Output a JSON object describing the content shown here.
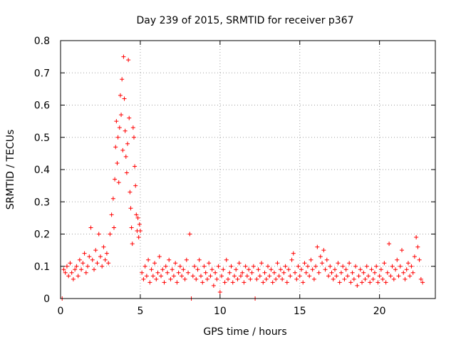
{
  "chart_data": {
    "type": "scatter",
    "title": "Day 239 of 2015, SRMTID for receiver p367",
    "xlabel": "GPS time / hours",
    "ylabel": "SRMTID / TECUs",
    "xlim": [
      0,
      23.5
    ],
    "ylim": [
      0,
      0.8
    ],
    "xticks": [
      0,
      5,
      10,
      15,
      20
    ],
    "xtick_labels": [
      "0",
      "5",
      "10",
      "15",
      "20"
    ],
    "yticks": [
      0,
      0.1,
      0.2,
      0.3,
      0.4,
      0.5,
      0.6,
      0.7,
      0.8
    ],
    "ytick_labels": [
      "0",
      "0.1",
      "0.2",
      "0.3",
      "0.4",
      "0.5",
      "0.6",
      "0.7",
      "0.8"
    ],
    "grid": true,
    "marker": "plus",
    "color": "#ff0000",
    "series": [
      {
        "name": "SRMTID",
        "points": [
          [
            0.1,
            0.0
          ],
          [
            0.2,
            0.09
          ],
          [
            0.3,
            0.08
          ],
          [
            0.4,
            0.1
          ],
          [
            0.5,
            0.07
          ],
          [
            0.6,
            0.11
          ],
          [
            0.7,
            0.08
          ],
          [
            0.8,
            0.06
          ],
          [
            0.9,
            0.09
          ],
          [
            1.0,
            0.1
          ],
          [
            1.1,
            0.07
          ],
          [
            1.2,
            0.12
          ],
          [
            1.3,
            0.09
          ],
          [
            1.4,
            0.11
          ],
          [
            1.5,
            0.14
          ],
          [
            1.6,
            0.08
          ],
          [
            1.7,
            0.1
          ],
          [
            1.8,
            0.13
          ],
          [
            1.9,
            0.22
          ],
          [
            2.0,
            0.12
          ],
          [
            2.1,
            0.09
          ],
          [
            2.2,
            0.15
          ],
          [
            2.3,
            0.11
          ],
          [
            2.4,
            0.2
          ],
          [
            2.5,
            0.13
          ],
          [
            2.6,
            0.1
          ],
          [
            2.7,
            0.16
          ],
          [
            2.8,
            0.12
          ],
          [
            2.9,
            0.14
          ],
          [
            3.0,
            0.11
          ],
          [
            3.1,
            0.2
          ],
          [
            3.2,
            0.26
          ],
          [
            3.3,
            0.31
          ],
          [
            3.35,
            0.22
          ],
          [
            3.4,
            0.37
          ],
          [
            3.45,
            0.47
          ],
          [
            3.5,
            0.55
          ],
          [
            3.55,
            0.42
          ],
          [
            3.6,
            0.5
          ],
          [
            3.65,
            0.36
          ],
          [
            3.7,
            0.53
          ],
          [
            3.75,
            0.63
          ],
          [
            3.8,
            0.57
          ],
          [
            3.85,
            0.68
          ],
          [
            3.9,
            0.46
          ],
          [
            3.95,
            0.75
          ],
          [
            4.0,
            0.62
          ],
          [
            4.05,
            0.52
          ],
          [
            4.1,
            0.44
          ],
          [
            4.15,
            0.39
          ],
          [
            4.2,
            0.48
          ],
          [
            4.25,
            0.74
          ],
          [
            4.3,
            0.56
          ],
          [
            4.35,
            0.33
          ],
          [
            4.4,
            0.28
          ],
          [
            4.45,
            0.22
          ],
          [
            4.5,
            0.17
          ],
          [
            4.55,
            0.53
          ],
          [
            4.6,
            0.5
          ],
          [
            4.65,
            0.41
          ],
          [
            4.7,
            0.35
          ],
          [
            4.75,
            0.26
          ],
          [
            4.8,
            0.21
          ],
          [
            4.85,
            0.25
          ],
          [
            4.9,
            0.19
          ],
          [
            4.95,
            0.23
          ],
          [
            5.0,
            0.21
          ],
          [
            5.1,
            0.08
          ],
          [
            5.2,
            0.06
          ],
          [
            5.3,
            0.1
          ],
          [
            5.4,
            0.07
          ],
          [
            5.5,
            0.12
          ],
          [
            5.6,
            0.05
          ],
          [
            5.7,
            0.09
          ],
          [
            5.8,
            0.07
          ],
          [
            5.9,
            0.11
          ],
          [
            6.0,
            0.06
          ],
          [
            6.1,
            0.08
          ],
          [
            6.2,
            0.13
          ],
          [
            6.3,
            0.07
          ],
          [
            6.4,
            0.09
          ],
          [
            6.5,
            0.05
          ],
          [
            6.6,
            0.1
          ],
          [
            6.7,
            0.08
          ],
          [
            6.8,
            0.12
          ],
          [
            6.9,
            0.06
          ],
          [
            7.0,
            0.09
          ],
          [
            7.1,
            0.07
          ],
          [
            7.2,
            0.11
          ],
          [
            7.3,
            0.05
          ],
          [
            7.4,
            0.08
          ],
          [
            7.5,
            0.1
          ],
          [
            7.6,
            0.07
          ],
          [
            7.7,
            0.09
          ],
          [
            7.8,
            0.06
          ],
          [
            7.9,
            0.12
          ],
          [
            8.0,
            0.08
          ],
          [
            8.1,
            0.2
          ],
          [
            8.2,
            0.0
          ],
          [
            8.3,
            0.07
          ],
          [
            8.4,
            0.1
          ],
          [
            8.5,
            0.06
          ],
          [
            8.6,
            0.09
          ],
          [
            8.7,
            0.12
          ],
          [
            8.8,
            0.07
          ],
          [
            8.9,
            0.05
          ],
          [
            9.0,
            0.1
          ],
          [
            9.1,
            0.08
          ],
          [
            9.2,
            0.06
          ],
          [
            9.3,
            0.11
          ],
          [
            9.4,
            0.07
          ],
          [
            9.5,
            0.09
          ],
          [
            9.6,
            0.04
          ],
          [
            9.7,
            0.08
          ],
          [
            9.8,
            0.06
          ],
          [
            9.9,
            0.1
          ],
          [
            10.0,
            0.02
          ],
          [
            10.1,
            0.07
          ],
          [
            10.2,
            0.09
          ],
          [
            10.3,
            0.05
          ],
          [
            10.4,
            0.12
          ],
          [
            10.5,
            0.06
          ],
          [
            10.6,
            0.08
          ],
          [
            10.7,
            0.1
          ],
          [
            10.8,
            0.05
          ],
          [
            10.9,
            0.07
          ],
          [
            11.0,
            0.09
          ],
          [
            11.1,
            0.06
          ],
          [
            11.2,
            0.11
          ],
          [
            11.3,
            0.07
          ],
          [
            11.4,
            0.08
          ],
          [
            11.5,
            0.05
          ],
          [
            11.6,
            0.1
          ],
          [
            11.7,
            0.07
          ],
          [
            11.8,
            0.09
          ],
          [
            11.9,
            0.06
          ],
          [
            12.0,
            0.08
          ],
          [
            12.1,
            0.1
          ],
          [
            12.2,
            0.0
          ],
          [
            12.3,
            0.06
          ],
          [
            12.4,
            0.09
          ],
          [
            12.5,
            0.07
          ],
          [
            12.6,
            0.11
          ],
          [
            12.7,
            0.05
          ],
          [
            12.8,
            0.08
          ],
          [
            12.9,
            0.06
          ],
          [
            13.0,
            0.1
          ],
          [
            13.1,
            0.07
          ],
          [
            13.2,
            0.09
          ],
          [
            13.3,
            0.05
          ],
          [
            13.4,
            0.08
          ],
          [
            13.5,
            0.06
          ],
          [
            13.6,
            0.11
          ],
          [
            13.7,
            0.07
          ],
          [
            13.8,
            0.09
          ],
          [
            13.9,
            0.06
          ],
          [
            14.0,
            0.08
          ],
          [
            14.1,
            0.1
          ],
          [
            14.2,
            0.05
          ],
          [
            14.3,
            0.09
          ],
          [
            14.4,
            0.07
          ],
          [
            14.5,
            0.12
          ],
          [
            14.6,
            0.14
          ],
          [
            14.7,
            0.08
          ],
          [
            14.8,
            0.06
          ],
          [
            14.9,
            0.1
          ],
          [
            15.0,
            0.07
          ],
          [
            15.1,
            0.09
          ],
          [
            15.2,
            0.05
          ],
          [
            15.3,
            0.11
          ],
          [
            15.4,
            0.08
          ],
          [
            15.5,
            0.1
          ],
          [
            15.6,
            0.07
          ],
          [
            15.7,
            0.12
          ],
          [
            15.8,
            0.09
          ],
          [
            15.9,
            0.06
          ],
          [
            16.0,
            0.1
          ],
          [
            16.1,
            0.16
          ],
          [
            16.2,
            0.08
          ],
          [
            16.3,
            0.13
          ],
          [
            16.4,
            0.11
          ],
          [
            16.5,
            0.15
          ],
          [
            16.6,
            0.09
          ],
          [
            16.7,
            0.12
          ],
          [
            16.8,
            0.07
          ],
          [
            16.9,
            0.1
          ],
          [
            17.0,
            0.08
          ],
          [
            17.1,
            0.06
          ],
          [
            17.2,
            0.09
          ],
          [
            17.3,
            0.07
          ],
          [
            17.4,
            0.11
          ],
          [
            17.5,
            0.05
          ],
          [
            17.6,
            0.08
          ],
          [
            17.7,
            0.1
          ],
          [
            17.8,
            0.06
          ],
          [
            17.9,
            0.09
          ],
          [
            18.0,
            0.07
          ],
          [
            18.1,
            0.11
          ],
          [
            18.2,
            0.05
          ],
          [
            18.3,
            0.08
          ],
          [
            18.4,
            0.06
          ],
          [
            18.5,
            0.1
          ],
          [
            18.6,
            0.04
          ],
          [
            18.7,
            0.07
          ],
          [
            18.8,
            0.09
          ],
          [
            18.9,
            0.05
          ],
          [
            19.0,
            0.08
          ],
          [
            19.1,
            0.06
          ],
          [
            19.2,
            0.1
          ],
          [
            19.3,
            0.07
          ],
          [
            19.4,
            0.05
          ],
          [
            19.5,
            0.09
          ],
          [
            19.6,
            0.06
          ],
          [
            19.7,
            0.08
          ],
          [
            19.8,
            0.1
          ],
          [
            19.9,
            0.05
          ],
          [
            20.0,
            0.07
          ],
          [
            20.1,
            0.09
          ],
          [
            20.2,
            0.06
          ],
          [
            20.3,
            0.11
          ],
          [
            20.4,
            0.05
          ],
          [
            20.5,
            0.08
          ],
          [
            20.6,
            0.17
          ],
          [
            20.7,
            0.07
          ],
          [
            20.8,
            0.1
          ],
          [
            20.9,
            0.06
          ],
          [
            21.0,
            0.09
          ],
          [
            21.1,
            0.12
          ],
          [
            21.2,
            0.07
          ],
          [
            21.3,
            0.1
          ],
          [
            21.4,
            0.15
          ],
          [
            21.5,
            0.08
          ],
          [
            21.6,
            0.06
          ],
          [
            21.7,
            0.09
          ],
          [
            21.8,
            0.11
          ],
          [
            21.9,
            0.07
          ],
          [
            22.0,
            0.1
          ],
          [
            22.1,
            0.08
          ],
          [
            22.2,
            0.13
          ],
          [
            22.3,
            0.19
          ],
          [
            22.4,
            0.16
          ],
          [
            22.5,
            0.12
          ],
          [
            22.6,
            0.06
          ],
          [
            22.7,
            0.05
          ]
        ]
      }
    ]
  }
}
